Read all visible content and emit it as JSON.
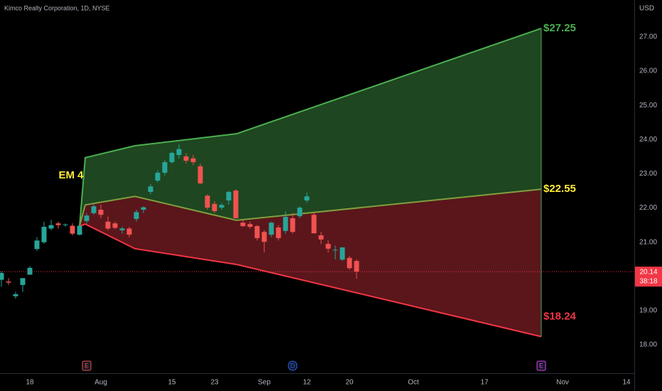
{
  "chart_data": {
    "type": "candlestick",
    "title": "Kimco Realty Corporation, 1D, NYSE",
    "currency": "USD",
    "up_color": "#26a69a",
    "down_color": "#ef5350",
    "x": [
      -4,
      -3,
      -2,
      -1,
      0,
      1,
      2,
      3,
      4,
      5,
      6,
      7,
      8,
      9,
      10,
      11,
      12,
      13,
      14,
      15,
      16,
      17,
      18,
      19,
      20,
      21,
      22,
      23,
      24,
      25,
      26,
      27,
      28,
      29,
      30,
      31,
      32,
      33,
      34,
      35,
      36,
      37,
      38,
      39,
      40,
      41,
      42,
      43,
      44,
      45,
      46
    ],
    "open": [
      19.9,
      19.85,
      19.42,
      19.75,
      20.05,
      20.8,
      21.0,
      21.4,
      21.55,
      21.5,
      21.48,
      21.22,
      21.62,
      21.85,
      21.95,
      21.6,
      21.55,
      21.35,
      21.4,
      21.68,
      21.95,
      22.47,
      22.8,
      23.03,
      23.34,
      23.55,
      23.51,
      23.45,
      23.22,
      22.36,
      22.12,
      22.01,
      22.22,
      22.51,
      21.57,
      21.53,
      21.47,
      21.3,
      21.22,
      21.43,
      21.33,
      21.7,
      21.76,
      22.22,
      21.8,
      21.2,
      20.95,
      20.76,
      20.49,
      20.54,
      20.45
    ],
    "high": [
      20.15,
      19.95,
      19.55,
      19.95,
      20.3,
      21.15,
      21.6,
      21.65,
      21.6,
      21.55,
      21.55,
      21.5,
      21.85,
      22.15,
      22.1,
      21.75,
      21.6,
      21.45,
      21.45,
      21.95,
      22.05,
      22.7,
      23.1,
      23.4,
      23.65,
      23.86,
      23.6,
      23.55,
      23.3,
      22.4,
      22.2,
      22.15,
      22.5,
      22.55,
      21.65,
      21.6,
      21.5,
      21.35,
      21.6,
      21.5,
      21.9,
      21.85,
      22.05,
      22.45,
      21.85,
      21.3,
      21.05,
      20.9,
      20.85,
      20.6,
      20.5
    ],
    "low": [
      19.7,
      19.75,
      19.35,
      19.55,
      20.05,
      20.75,
      20.95,
      21.35,
      21.4,
      21.45,
      21.2,
      21.2,
      21.55,
      21.8,
      21.7,
      21.35,
      21.38,
      21.25,
      21.15,
      21.6,
      21.85,
      22.4,
      22.75,
      22.95,
      23.3,
      23.45,
      23.3,
      23.25,
      22.7,
      21.95,
      21.85,
      21.95,
      22.1,
      21.7,
      21.45,
      21.4,
      21.05,
      20.7,
      21.15,
      21.05,
      21.25,
      21.25,
      21.7,
      22.15,
      21.26,
      20.95,
      20.7,
      20.5,
      20.45,
      20.2,
      19.93
    ],
    "close": [
      20.1,
      19.82,
      19.48,
      19.95,
      20.25,
      21.05,
      21.45,
      21.5,
      21.5,
      21.52,
      21.25,
      21.48,
      21.78,
      22.05,
      21.8,
      21.4,
      21.42,
      21.4,
      21.22,
      21.88,
      22.02,
      22.63,
      23.03,
      23.34,
      23.61,
      23.72,
      23.38,
      23.34,
      22.72,
      22.01,
      21.91,
      22.09,
      22.47,
      21.7,
      21.47,
      21.45,
      21.12,
      21.01,
      21.57,
      21.12,
      21.74,
      21.3,
      22.01,
      22.34,
      21.26,
      21.08,
      20.81,
      20.78,
      20.85,
      20.24,
      20.14
    ],
    "xlim": [
      -4.2,
      85.1
    ],
    "ylim": [
      17.17,
      28.08
    ],
    "xticks": [
      {
        "value": 0,
        "label": "18"
      },
      {
        "value": 10,
        "label": "Aug"
      },
      {
        "value": 20,
        "label": "15"
      },
      {
        "value": 26,
        "label": "23"
      },
      {
        "value": 33,
        "label": "Sep"
      },
      {
        "value": 39,
        "label": "12"
      },
      {
        "value": 45,
        "label": "20"
      },
      {
        "value": 54,
        "label": "Oct"
      },
      {
        "value": 64,
        "label": "17"
      },
      {
        "value": 75,
        "label": "Nov"
      },
      {
        "value": 84,
        "label": "14"
      }
    ],
    "yticks": [
      {
        "value": 18,
        "label": "18.00"
      },
      {
        "value": 19,
        "label": "19.00"
      },
      {
        "value": 20,
        "label": "20.00"
      },
      {
        "value": 21,
        "label": "21.00"
      },
      {
        "value": 22,
        "label": "22.00"
      },
      {
        "value": 23,
        "label": "23.00"
      },
      {
        "value": 24,
        "label": "24.00"
      },
      {
        "value": 25,
        "label": "25.00"
      },
      {
        "value": 26,
        "label": "26.00"
      },
      {
        "value": 27,
        "label": "27.00"
      }
    ],
    "grid": false,
    "band_x": [
      7,
      7.8,
      14.8,
      29.1,
      72
    ],
    "bands": [
      {
        "color": "#4caf50",
        "values": [
          21.47,
          23.47,
          23.82,
          24.17,
          27.25
        ],
        "value_labels": [
          null,
          null,
          null,
          null,
          "$27.25"
        ]
      },
      {
        "color": "#7f9f3f",
        "values": [
          21.47,
          22.09,
          22.34,
          21.64,
          22.55
        ],
        "value_labels": [
          null,
          null,
          null,
          null,
          "$22.55"
        ],
        "label_color": "#ffeb3b"
      },
      {
        "color": "#f23645",
        "values": [
          21.47,
          21.53,
          20.81,
          20.35,
          18.24
        ],
        "value_labels": [
          null,
          null,
          null,
          null,
          "$18.24"
        ]
      }
    ],
    "upper_fill": "#1e4620",
    "lower_fill": "#5a161b",
    "annotations": [
      {
        "text": "EM 4",
        "x": 5.8,
        "y": 22.95,
        "color": "#ffeb3b"
      }
    ],
    "last_price": {
      "value": 20.14,
      "countdown": "38:18",
      "color": "#f23645"
    },
    "events": [
      {
        "x": 8,
        "label": "E",
        "color": "#ef5350"
      },
      {
        "x": 37,
        "label": "D",
        "color": "#2962ff"
      },
      {
        "x": 72,
        "label": "E",
        "color": "#e040fb"
      }
    ]
  }
}
